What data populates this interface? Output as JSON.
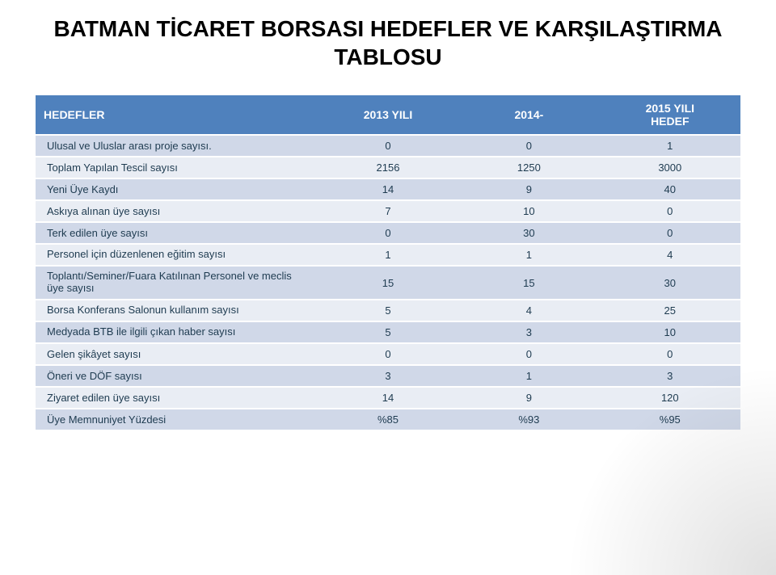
{
  "title_line1": "BATMAN TİCARET BORSASI HEDEFLER VE KARŞILAŞTIRMA",
  "title_line2": "TABLOSU",
  "columns": {
    "label": "HEDEFLER",
    "y2013": "2013 YILI",
    "y2014": "2014-",
    "y2015_l1": "2015 YILI",
    "y2015_l2": "HEDEF"
  },
  "rows": [
    {
      "label": "Ulusal ve Uluslar arası proje sayısı.",
      "y2013": "0",
      "y2014": "0",
      "y2015": "1"
    },
    {
      "label": "Toplam Yapılan Tescil sayısı",
      "y2013": "2156",
      "y2014": "1250",
      "y2015": "3000"
    },
    {
      "label": "Yeni Üye Kaydı",
      "y2013": "14",
      "y2014": "9",
      "y2015": "40"
    },
    {
      "label": "Askıya alınan üye sayısı",
      "y2013": "7",
      "y2014": "10",
      "y2015": "0"
    },
    {
      "label": "Terk edilen üye sayısı",
      "y2013": "0",
      "y2014": "30",
      "y2015": "0"
    },
    {
      "label": "Personel için düzenlenen eğitim sayısı",
      "y2013": "1",
      "y2014": "1",
      "y2015": "4"
    },
    {
      "label": "Toplantı/Seminer/Fuara Katılınan Personel  ve meclis üye sayısı",
      "y2013": "15",
      "y2014": "15",
      "y2015": "30"
    },
    {
      "label": "Borsa Konferans Salonun kullanım sayısı",
      "y2013": "5",
      "y2014": "4",
      "y2015": "25"
    },
    {
      "label": "Medyada BTB ile ilgili çıkan haber sayısı",
      "y2013": "5",
      "y2014": "3",
      "y2015": "10"
    },
    {
      "label": "Gelen şikâyet sayısı",
      "y2013": "0",
      "y2014": "0",
      "y2015": "0"
    },
    {
      "label": "Öneri ve DÖF sayısı",
      "y2013": "3",
      "y2014": "1",
      "y2015": "3"
    },
    {
      "label": "Ziyaret edilen üye sayısı",
      "y2013": "14",
      "y2014": "9",
      "y2015": "120"
    },
    {
      "label": "Üye Memnuniyet Yüzdesi",
      "y2013": "%85",
      "y2014": "%93",
      "y2015": "%95"
    }
  ],
  "style": {
    "header_bg": "#4f81bd",
    "header_fg": "#ffffff",
    "row_a_bg": "#d0d8e8",
    "row_b_bg": "#e9edf4",
    "text_color": "#1e3b50",
    "title_fontsize": 28,
    "cell_fontsize": 13,
    "header_fontsize": 14
  }
}
